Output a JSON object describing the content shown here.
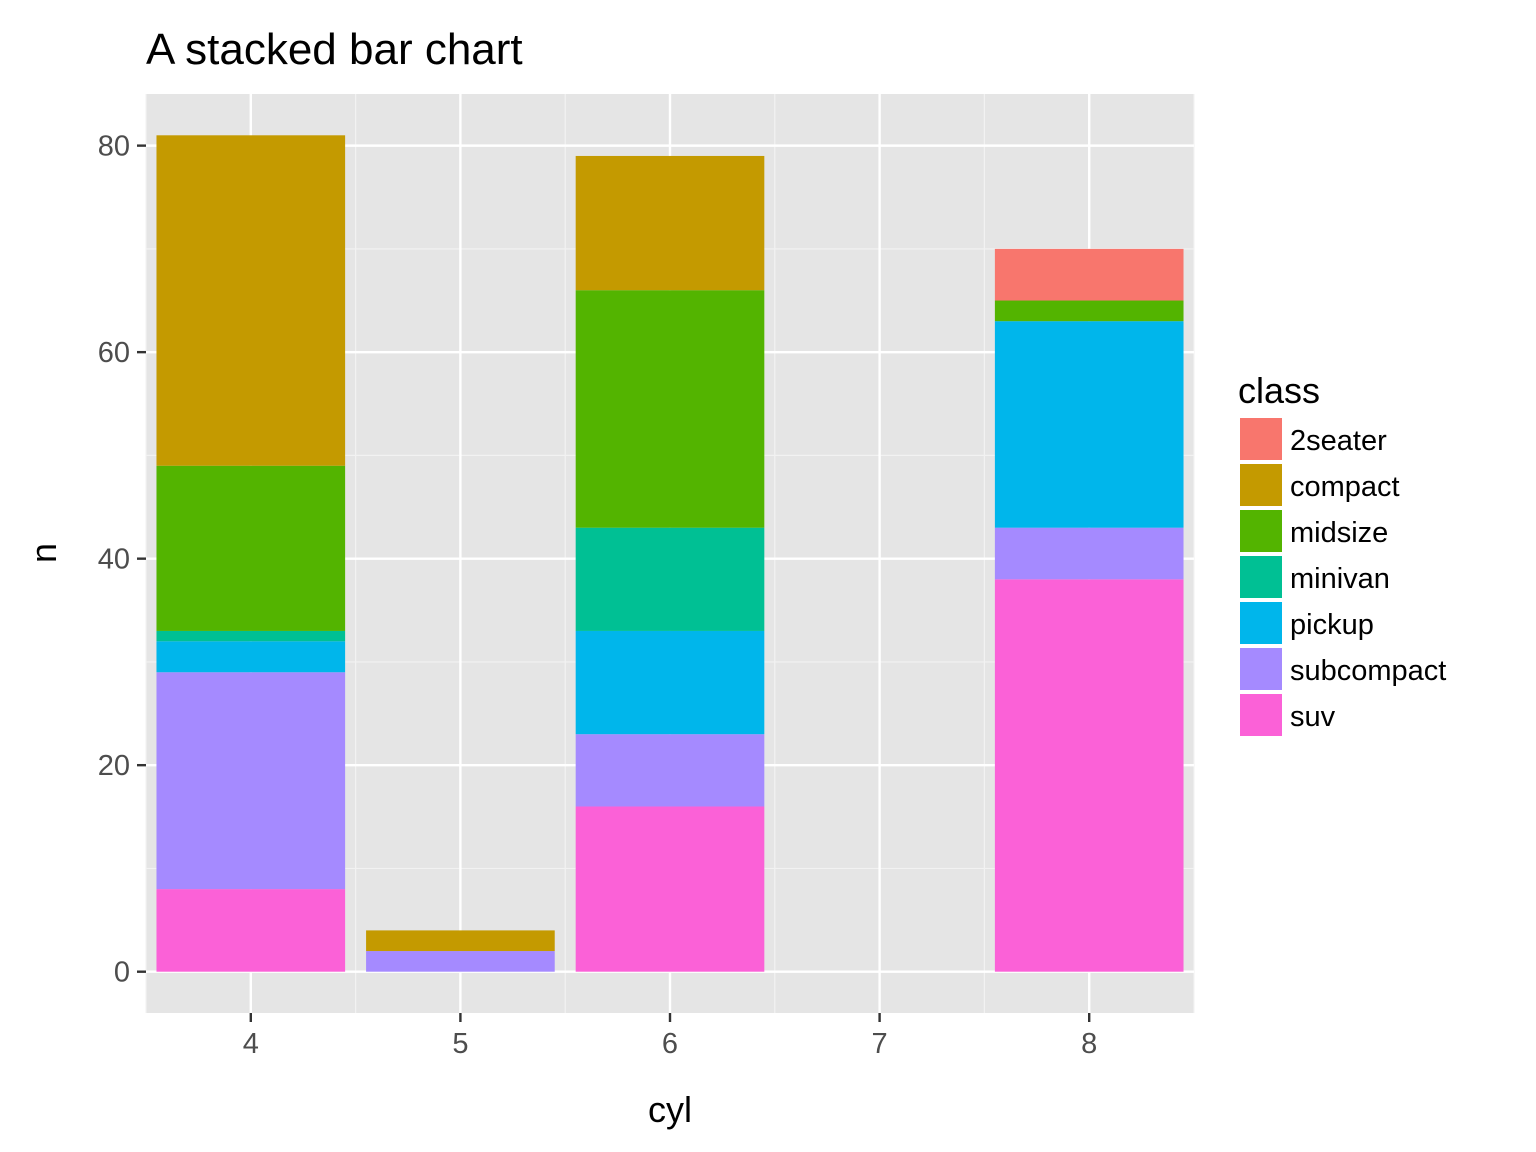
{
  "chart_data": {
    "type": "bar",
    "stacked": true,
    "title": "A stacked bar chart",
    "xlabel": "cyl",
    "ylabel": "n",
    "categories": [
      "4",
      "5",
      "6",
      "8"
    ],
    "x_ticks": [
      "4",
      "5",
      "6",
      "7",
      "8"
    ],
    "x_values": [
      4,
      5,
      6,
      8
    ],
    "xlim": [
      3.5,
      8.5
    ],
    "ylim": [
      -4,
      85
    ],
    "y_ticks": [
      0,
      20,
      40,
      60,
      80
    ],
    "grid": true,
    "legend": {
      "title": "class",
      "position": "right"
    },
    "series": [
      {
        "name": "2seater",
        "color": "#F8766D",
        "values": [
          0,
          0,
          0,
          5
        ]
      },
      {
        "name": "compact",
        "color": "#C49A00",
        "values": [
          32,
          2,
          13,
          0
        ]
      },
      {
        "name": "midsize",
        "color": "#53B400",
        "values": [
          16,
          0,
          23,
          2
        ]
      },
      {
        "name": "minivan",
        "color": "#00C094",
        "values": [
          1,
          0,
          10,
          0
        ]
      },
      {
        "name": "pickup",
        "color": "#00B6EB",
        "values": [
          3,
          0,
          10,
          20
        ]
      },
      {
        "name": "subcompact",
        "color": "#A58AFF",
        "values": [
          21,
          2,
          7,
          5
        ]
      },
      {
        "name": "suv",
        "color": "#FB61D7",
        "values": [
          8,
          0,
          16,
          38
        ]
      }
    ]
  }
}
